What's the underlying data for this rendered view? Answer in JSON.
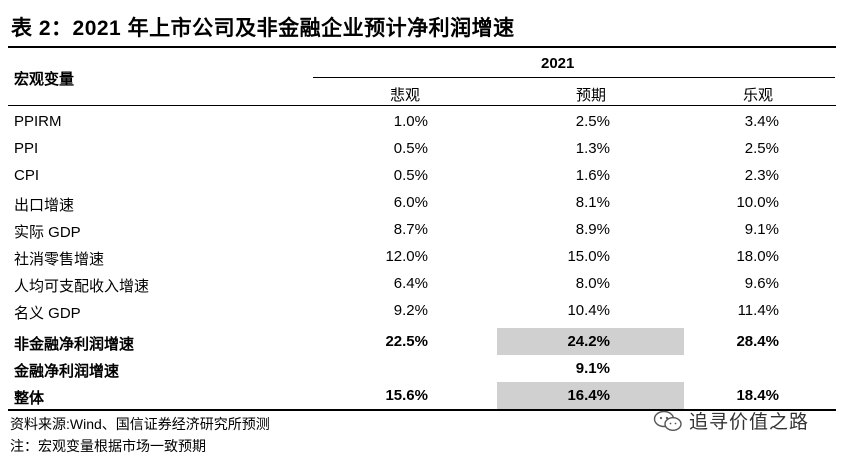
{
  "title": "表 2：2021 年上市公司及非金融企业预计净利润增速",
  "header": {
    "row_label": "宏观变量",
    "year": "2021",
    "columns": [
      "悲观",
      "预期",
      "乐观"
    ]
  },
  "rows": [
    {
      "label": "PPIRM",
      "v": [
        "1.0%",
        "2.5%",
        "3.4%"
      ]
    },
    {
      "label": "PPI",
      "v": [
        "0.5%",
        "1.3%",
        "2.5%"
      ]
    },
    {
      "label": "CPI",
      "v": [
        "0.5%",
        "1.6%",
        "2.3%"
      ]
    },
    {
      "label": "出口增速",
      "v": [
        "6.0%",
        "8.1%",
        "10.0%"
      ]
    },
    {
      "label": "实际 GDP",
      "v": [
        "8.7%",
        "8.9%",
        "9.1%"
      ]
    },
    {
      "label": "社消零售增速",
      "v": [
        "12.0%",
        "15.0%",
        "18.0%"
      ]
    },
    {
      "label": "人均可支配收入增速",
      "v": [
        "6.4%",
        "8.0%",
        "9.6%"
      ]
    },
    {
      "label": "名义 GDP",
      "v": [
        "9.2%",
        "10.4%",
        "11.4%"
      ]
    },
    {
      "label": "非金融净利润增速",
      "v": [
        "22.5%",
        "24.2%",
        "28.4%"
      ]
    },
    {
      "label": "金融净利润增速",
      "v": [
        "",
        "9.1%",
        ""
      ]
    },
    {
      "label": "整体",
      "v": [
        "15.6%",
        "16.4%",
        "18.4%"
      ]
    }
  ],
  "notes": {
    "source": "资料来源:Wind、国信证券经济研究所预测",
    "note": "注：宏观变量根据市场一致预期"
  },
  "watermark": {
    "text": "追寻价值之路",
    "icon": "wechat-icon"
  }
}
